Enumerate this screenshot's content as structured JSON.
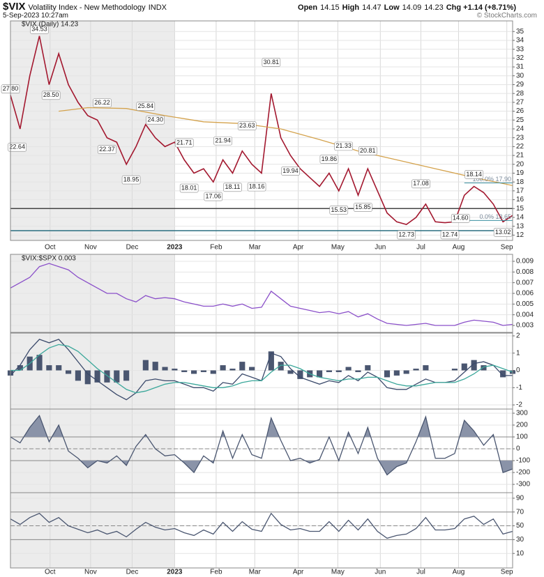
{
  "header": {
    "symbol": "$VIX",
    "name": "Volatility Index - New Methodology",
    "exchange": "INDX",
    "date": "5-Sep-2023 10:27am",
    "quote": [
      {
        "label": "Open",
        "value": 14.15
      },
      {
        "label": "High",
        "value": 14.47
      },
      {
        "label": "Low",
        "value": 14.09
      }
    ],
    "last": 14.23,
    "change": "Chg +1.14 (+8.71%)",
    "copyright": "© StockCharts.com"
  },
  "chart_data": [
    {
      "type": "line",
      "legend": "$VIX (Daily) 14.23",
      "x": [
        0,
        1,
        2,
        3,
        4,
        5,
        6,
        7,
        8,
        9,
        10,
        11,
        12,
        13,
        14,
        15,
        16,
        17,
        18,
        19,
        20,
        21,
        22,
        23,
        24,
        25,
        26,
        27,
        28,
        29,
        30,
        31,
        32,
        33,
        34,
        35,
        36,
        37,
        38,
        39,
        40,
        41,
        42,
        43,
        44,
        45,
        46,
        47,
        48,
        49,
        50,
        51,
        52
      ],
      "xlim": [
        0,
        52
      ],
      "xticks": [
        {
          "value": 4.1,
          "label": "Oct"
        },
        {
          "value": 8.3,
          "label": "Nov"
        },
        {
          "value": 12.6,
          "label": "Dec"
        },
        {
          "value": 17.0,
          "label": "2023"
        },
        {
          "value": 21.3,
          "label": "Feb"
        },
        {
          "value": 25.3,
          "label": "Mar"
        },
        {
          "value": 29.8,
          "label": "Apr"
        },
        {
          "value": 33.9,
          "label": "May"
        },
        {
          "value": 38.3,
          "label": "Jun"
        },
        {
          "value": 42.5,
          "label": "Jul"
        },
        {
          "value": 46.4,
          "label": "Aug"
        },
        {
          "value": 51.4,
          "label": "Sep"
        }
      ],
      "ylim": [
        11.4,
        36.2
      ],
      "yticks": [
        12,
        13,
        14,
        15,
        16,
        17,
        18,
        19,
        20,
        21,
        22,
        23,
        24,
        25,
        26,
        27,
        28,
        29,
        30,
        31,
        32,
        33,
        34,
        35
      ],
      "series": [
        {
          "color": "#a3182f",
          "values": [
            27.8,
            24,
            30,
            34.5,
            29,
            32.5,
            29,
            27,
            25.5,
            25,
            23,
            22.5,
            20,
            22,
            24.5,
            23,
            22,
            22.5,
            20.5,
            19,
            19.5,
            18,
            20.5,
            19,
            21.5,
            20,
            19,
            28,
            23,
            21,
            19.5,
            18.5,
            17.5,
            19,
            17,
            19.5,
            16.5,
            19.5,
            17,
            14.5,
            13.5,
            13.2,
            14,
            15.5,
            13.5,
            13.4,
            13.5,
            16.5,
            17.5,
            16.8,
            15.5,
            13.5,
            14.23
          ]
        },
        {
          "color": "#d4a24c",
          "x": [
            5,
            8,
            12,
            16,
            20,
            24,
            28,
            32,
            36,
            40,
            44,
            48,
            52
          ],
          "values": [
            26.0,
            26.4,
            26.3,
            25.5,
            24.8,
            24.6,
            24.0,
            22.8,
            21.5,
            20.5,
            19.5,
            18.5,
            17.6
          ]
        }
      ],
      "hlines": [
        {
          "value": 15,
          "color": "#444444"
        },
        {
          "value": 12.5,
          "color": "#2a6f80"
        }
      ],
      "fib": [
        {
          "value": 17.9,
          "label": "100.0% 17.90"
        },
        {
          "value": 13.65,
          "label": "0.0% 13.65"
        }
      ],
      "annotations": [
        {
          "x": 0,
          "value": 27.8,
          "label": "27.80"
        },
        {
          "x": 0.7,
          "value": 22.64,
          "label": "22.64"
        },
        {
          "x": 3,
          "value": 34.53,
          "label": "34.53"
        },
        {
          "x": 4.2,
          "value": 28.5,
          "label": "28.50"
        },
        {
          "x": 9.5,
          "value": 26.22,
          "label": "26.22"
        },
        {
          "x": 10,
          "value": 22.37,
          "label": "22.37"
        },
        {
          "x": 12.5,
          "value": 18.95,
          "label": "18.95"
        },
        {
          "x": 14,
          "value": 25.84,
          "label": "25.84"
        },
        {
          "x": 15,
          "value": 24.3,
          "label": "24.30"
        },
        {
          "x": 18,
          "value": 21.71,
          "label": "21.71"
        },
        {
          "x": 18.5,
          "value": 18.01,
          "label": "18.01"
        },
        {
          "x": 21,
          "value": 17.06,
          "label": "17.06"
        },
        {
          "x": 22,
          "value": 21.94,
          "label": "21.94"
        },
        {
          "x": 23,
          "value": 18.11,
          "label": "18.11"
        },
        {
          "x": 24.5,
          "value": 23.63,
          "label": "23.63"
        },
        {
          "x": 25.5,
          "value": 18.16,
          "label": "18.16"
        },
        {
          "x": 27,
          "value": 30.81,
          "label": "30.81"
        },
        {
          "x": 29,
          "value": 19.94,
          "label": "19.94"
        },
        {
          "x": 33,
          "value": 19.86,
          "label": "19.86"
        },
        {
          "x": 34.5,
          "value": 21.33,
          "label": "21.33"
        },
        {
          "x": 34,
          "value": 15.53,
          "label": "15.53"
        },
        {
          "x": 36.5,
          "value": 15.85,
          "label": "15.85"
        },
        {
          "x": 37,
          "value": 20.81,
          "label": "20.81"
        },
        {
          "x": 41,
          "value": 12.73,
          "label": "12.73"
        },
        {
          "x": 42.5,
          "value": 17.08,
          "label": "17.08"
        },
        {
          "x": 45.5,
          "value": 12.74,
          "label": "12.74"
        },
        {
          "x": 46.6,
          "value": 14.6,
          "label": "14.60"
        },
        {
          "x": 48,
          "value": 18.14,
          "label": "18.14"
        },
        {
          "x": 51,
          "value": 13.02,
          "label": "13.02"
        }
      ]
    },
    {
      "type": "line",
      "title": "$VIX:$SPX 0.003",
      "ylim": [
        0.00235,
        0.00965
      ],
      "yticks": [
        0.003,
        0.004,
        0.005,
        0.006,
        0.007,
        0.008,
        0.009
      ],
      "series": [
        {
          "color": "#8a4fc9",
          "values": [
            0.0065,
            0.007,
            0.0075,
            0.0085,
            0.0088,
            0.0085,
            0.0082,
            0.0075,
            0.007,
            0.0065,
            0.006,
            0.006,
            0.0055,
            0.0052,
            0.0058,
            0.0055,
            0.0056,
            0.0055,
            0.0052,
            0.005,
            0.0048,
            0.0048,
            0.005,
            0.0048,
            0.005,
            0.0046,
            0.0047,
            0.0062,
            0.0055,
            0.0048,
            0.0046,
            0.0044,
            0.0042,
            0.0043,
            0.0041,
            0.0043,
            0.0038,
            0.0041,
            0.0036,
            0.0032,
            0.0031,
            0.003,
            0.0031,
            0.0032,
            0.003,
            0.003,
            0.003,
            0.0033,
            0.0035,
            0.0034,
            0.0033,
            0.003,
            0.0031
          ]
        }
      ]
    },
    {
      "type": "combo",
      "ylim": [
        -2.24,
        2.16
      ],
      "yticks": [
        -2,
        -1,
        0,
        1,
        2
      ],
      "hist": {
        "color": "#4a5670",
        "values": [
          -0.3,
          0.3,
          0.8,
          0.9,
          0.3,
          0.3,
          -0.2,
          -0.6,
          -0.8,
          -0.7,
          -0.7,
          -0.7,
          -0.6,
          0,
          0.6,
          0.5,
          0.2,
          0.1,
          -0.1,
          -0.2,
          -0.1,
          -0.2,
          0.3,
          0.1,
          0.5,
          0.2,
          0,
          1.1,
          0.5,
          -0.2,
          -0.5,
          -0.4,
          -0.4,
          -0.1,
          -0.1,
          0.2,
          -0.1,
          0.3,
          0,
          -0.4,
          -0.3,
          -0.2,
          0.1,
          0.3,
          0,
          0,
          0.1,
          0.4,
          0.6,
          0.3,
          0,
          -0.4,
          -0.2
        ]
      },
      "series": [
        {
          "color": "#3b4a6b",
          "values": [
            -0.3,
            0.3,
            1.2,
            1.8,
            1.6,
            1.8,
            1.2,
            0.5,
            -0.2,
            -0.6,
            -1,
            -1.4,
            -1.7,
            -1.3,
            -0.6,
            -0.5,
            -0.6,
            -0.6,
            -0.8,
            -1,
            -1,
            -1.2,
            -0.7,
            -0.8,
            -0.2,
            -0.4,
            -0.6,
            1,
            0.8,
            0.1,
            -0.4,
            -0.6,
            -0.8,
            -0.6,
            -0.7,
            -0.3,
            -0.6,
            -0.1,
            -0.4,
            -1,
            -1.1,
            -1.1,
            -0.8,
            -0.5,
            -0.7,
            -0.7,
            -0.6,
            -0.1,
            0.4,
            0.5,
            0.3,
            -0.3,
            -0.3
          ]
        },
        {
          "color": "#3aa79a",
          "values": [
            0,
            0,
            0.4,
            0.9,
            1.3,
            1.5,
            1.4,
            1.1,
            0.6,
            0.1,
            -0.3,
            -0.7,
            -1.1,
            -1.3,
            -1.2,
            -1,
            -0.8,
            -0.7,
            -0.7,
            -0.8,
            -0.9,
            -1,
            -1,
            -0.9,
            -0.7,
            -0.6,
            -0.6,
            -0.1,
            0.3,
            0.3,
            0.1,
            -0.2,
            -0.4,
            -0.5,
            -0.6,
            -0.5,
            -0.5,
            -0.4,
            -0.4,
            -0.6,
            -0.8,
            -0.9,
            -0.9,
            -0.8,
            -0.7,
            -0.7,
            -0.7,
            -0.5,
            -0.2,
            0.2,
            0.3,
            0.1,
            -0.1
          ]
        }
      ]
    },
    {
      "type": "area",
      "ylim": [
        -370,
        335
      ],
      "yticks": [
        -300,
        -200,
        -100,
        0,
        100,
        200,
        300
      ],
      "levels": [
        {
          "value": 100
        },
        {
          "value": 0,
          "dashed": true
        },
        {
          "value": -100
        }
      ],
      "fill_color": "#8a93a8",
      "series": [
        {
          "color": "#4a5670",
          "values": [
            100,
            50,
            180,
            280,
            60,
            200,
            -20,
            -80,
            -160,
            -100,
            -120,
            -60,
            -140,
            20,
            120,
            0,
            -60,
            -50,
            -120,
            -200,
            -60,
            -120,
            150,
            -80,
            120,
            -50,
            -80,
            260,
            70,
            -100,
            -80,
            -120,
            -90,
            100,
            -100,
            140,
            -40,
            180,
            -80,
            -220,
            -150,
            -120,
            60,
            270,
            -80,
            -80,
            -40,
            240,
            150,
            30,
            120,
            -200,
            -170
          ]
        }
      ]
    },
    {
      "type": "line",
      "ylim": [
        -11,
        98
      ],
      "yticks": [
        10,
        30,
        50,
        70,
        90
      ],
      "levels": [
        {
          "value": 70
        },
        {
          "value": 50,
          "dashed": true
        },
        {
          "value": 30
        }
      ],
      "series": [
        {
          "color": "#4a5670",
          "values": [
            60,
            52,
            62,
            68,
            55,
            62,
            50,
            45,
            40,
            44,
            38,
            42,
            34,
            45,
            55,
            48,
            44,
            46,
            40,
            36,
            44,
            38,
            55,
            42,
            56,
            45,
            42,
            68,
            52,
            44,
            46,
            42,
            42,
            56,
            42,
            58,
            44,
            60,
            42,
            32,
            36,
            38,
            46,
            62,
            44,
            44,
            46,
            60,
            64,
            52,
            60,
            38,
            42
          ]
        }
      ]
    }
  ]
}
